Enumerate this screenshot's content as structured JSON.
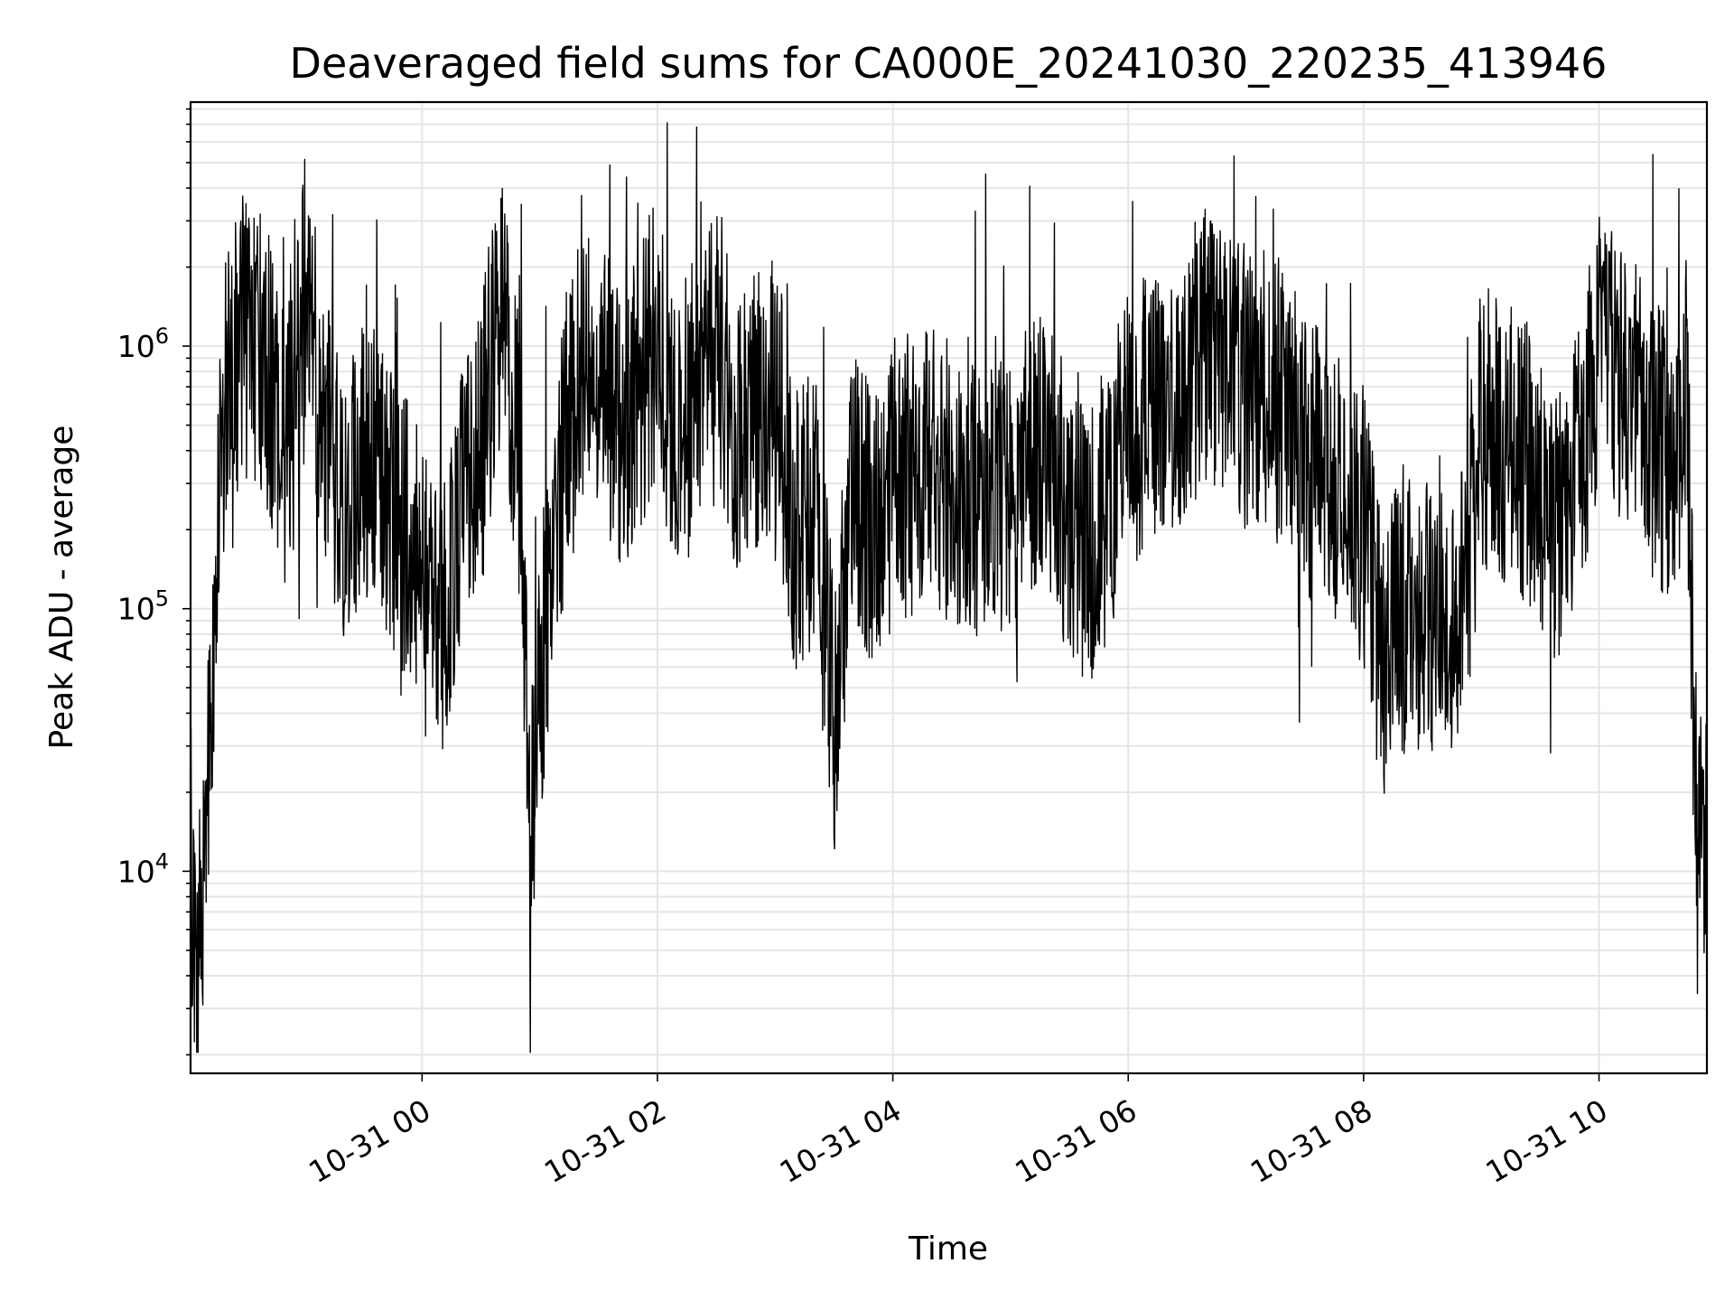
{
  "chart_data": {
    "type": "line",
    "title": "Deaveraged field sums for CA000E_20241030_220235_413946",
    "xlabel": "Time",
    "ylabel": "Peak ADU - average",
    "y_scale": "log",
    "ylim": [
      1700,
      8500000
    ],
    "xlim": [
      "2024-10-30 22:02",
      "2024-10-31 10:55"
    ],
    "x_ticks": [
      "10-31 00",
      "10-31 02",
      "10-31 04",
      "10-31 06",
      "10-31 08",
      "10-31 10"
    ],
    "y_ticks": [
      {
        "base": "10",
        "exp": "4",
        "value": 10000
      },
      {
        "base": "10",
        "exp": "5",
        "value": 100000
      },
      {
        "base": "10",
        "exp": "6",
        "value": 1000000
      }
    ],
    "grid": true,
    "line_color": "#000000",
    "grid_color": "#e5e5e5",
    "series": [
      {
        "x": [
          "2024-10-30 22:02",
          "2024-10-30 22:05",
          "2024-10-30 22:08",
          "2024-10-30 22:11",
          "2024-10-30 22:15",
          "2024-10-30 22:20",
          "2024-10-30 22:30",
          "2024-10-30 22:40",
          "2024-10-30 22:50",
          "2024-10-30 23:00",
          "2024-10-30 23:10",
          "2024-10-30 23:20",
          "2024-10-30 23:30",
          "2024-10-30 23:40",
          "2024-10-30 23:50",
          "2024-10-31 00:00",
          "2024-10-31 00:10",
          "2024-10-31 00:20",
          "2024-10-31 00:30",
          "2024-10-31 00:40",
          "2024-10-31 00:46",
          "2024-10-31 00:50",
          "2024-10-31 00:55",
          "2024-10-31 01:00",
          "2024-10-31 01:10",
          "2024-10-31 01:20",
          "2024-10-31 01:30",
          "2024-10-31 01:40",
          "2024-10-31 01:50",
          "2024-10-31 02:00",
          "2024-10-31 02:10",
          "2024-10-31 02:20",
          "2024-10-31 02:30",
          "2024-10-31 02:40",
          "2024-10-31 02:50",
          "2024-10-31 03:00",
          "2024-10-31 03:10",
          "2024-10-31 03:20",
          "2024-10-31 03:30",
          "2024-10-31 03:40",
          "2024-10-31 03:50",
          "2024-10-31 04:00",
          "2024-10-31 04:20",
          "2024-10-31 04:40",
          "2024-10-31 05:00",
          "2024-10-31 05:20",
          "2024-10-31 05:40",
          "2024-10-31 06:00",
          "2024-10-31 06:20",
          "2024-10-31 06:40",
          "2024-10-31 07:00",
          "2024-10-31 07:20",
          "2024-10-31 07:40",
          "2024-10-31 08:00",
          "2024-10-31 08:10",
          "2024-10-31 08:20",
          "2024-10-31 08:30",
          "2024-10-31 08:40",
          "2024-10-31 08:48",
          "2024-10-31 09:00",
          "2024-10-31 09:20",
          "2024-10-31 09:40",
          "2024-10-31 10:00",
          "2024-10-31 10:20",
          "2024-10-31 10:40",
          "2024-10-31 10:45",
          "2024-10-31 10:50",
          "2024-10-31 10:55"
        ],
        "values": [
          8000,
          2700,
          12000,
          30000,
          150000,
          700000,
          1200000,
          900000,
          400000,
          1800000,
          500000,
          200000,
          400000,
          300000,
          200000,
          150000,
          90000,
          250000,
          400000,
          1500000,
          700000,
          300000,
          12000,
          50000,
          300000,
          700000,
          900000,
          500000,
          600000,
          1200000,
          400000,
          700000,
          900000,
          500000,
          600000,
          700000,
          200000,
          250000,
          40000,
          300000,
          200000,
          300000,
          350000,
          250000,
          300000,
          400000,
          150000,
          500000,
          600000,
          1000000,
          700000,
          600000,
          300000,
          200000,
          60000,
          100000,
          80000,
          120000,
          70000,
          500000,
          400000,
          200000,
          900000,
          600000,
          300000,
          700000,
          8000,
          20000
        ]
      }
    ]
  }
}
